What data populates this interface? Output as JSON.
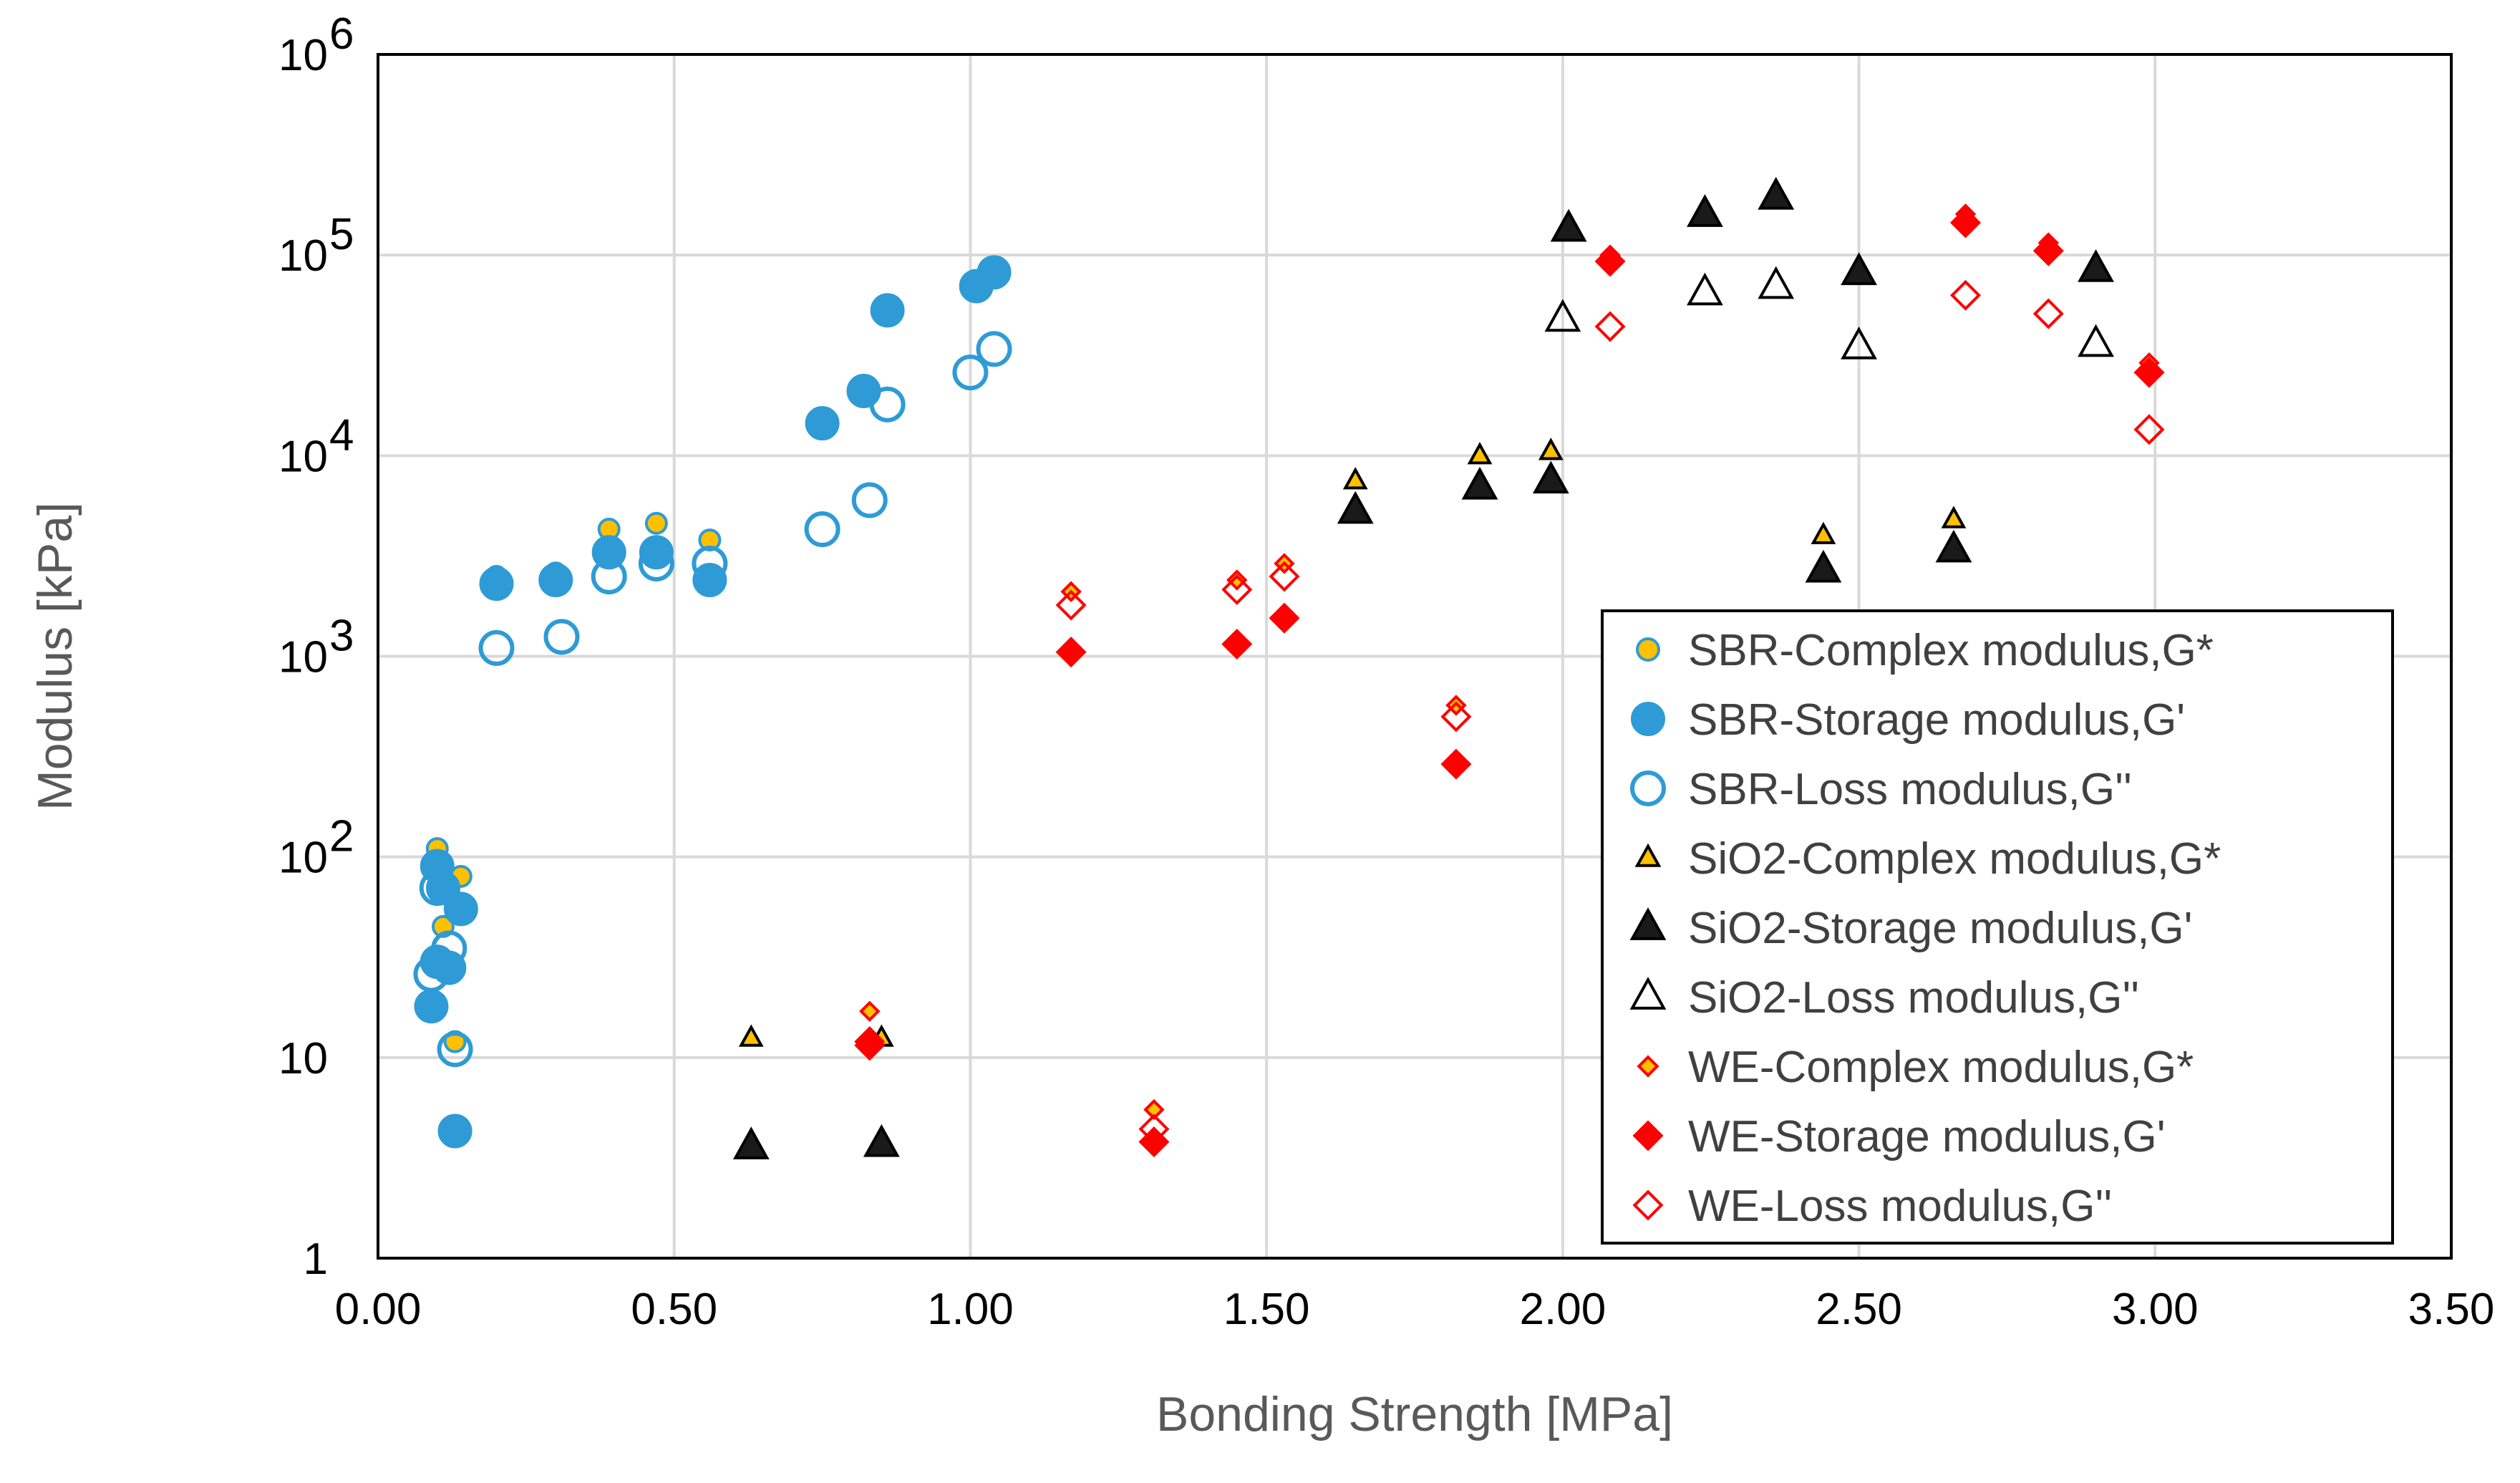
{
  "chart_data": {
    "type": "scatter",
    "title": "",
    "xlabel": "Bonding Strength [MPa]",
    "ylabel": "Modulus [kPa]",
    "xlim": [
      0,
      3.5
    ],
    "ylim": [
      1,
      1000000
    ],
    "yscale": "log",
    "grid": true,
    "legend_position": "bottom-right",
    "x_ticks": [
      0,
      0.5,
      1.0,
      1.5,
      2.0,
      2.5,
      3.0,
      3.5
    ],
    "x_tick_labels": [
      "0.00",
      "0.50",
      "1.00",
      "1.50",
      "2.00",
      "2.50",
      "3.00",
      "3.50"
    ],
    "y_ticks": [
      {
        "value": 1,
        "base": "1",
        "exp": ""
      },
      {
        "value": 10,
        "base": "10",
        "exp": ""
      },
      {
        "value": 100,
        "base": "10",
        "exp": "2"
      },
      {
        "value": 1000,
        "base": "10",
        "exp": "3"
      },
      {
        "value": 10000,
        "base": "10",
        "exp": "4"
      },
      {
        "value": 100000,
        "base": "10",
        "exp": "5"
      },
      {
        "value": 1000000,
        "base": "10",
        "exp": "6"
      }
    ],
    "series": [
      {
        "name": "SBR-Complex modulus,G*",
        "marker": "circle",
        "fill": "#FFC000",
        "stroke": "#2E9BD6",
        "size": "small",
        "points": [
          [
            0.1,
            110
          ],
          [
            0.11,
            45
          ],
          [
            0.13,
            12
          ],
          [
            0.14,
            80
          ],
          [
            0.2,
            2500
          ],
          [
            0.3,
            2600
          ],
          [
            0.39,
            4300
          ],
          [
            0.47,
            4600
          ],
          [
            0.56,
            3800
          ]
        ]
      },
      {
        "name": "SBR-Storage modulus,G'",
        "marker": "circle",
        "fill": "#2E9BD6",
        "stroke": "#2E9BD6",
        "size": "large",
        "points": [
          [
            0.09,
            18
          ],
          [
            0.1,
            30
          ],
          [
            0.1,
            90
          ],
          [
            0.11,
            70
          ],
          [
            0.12,
            28
          ],
          [
            0.13,
            4.3
          ],
          [
            0.14,
            55
          ],
          [
            0.2,
            2300
          ],
          [
            0.3,
            2400
          ],
          [
            0.39,
            3300
          ],
          [
            0.47,
            3300
          ],
          [
            0.56,
            2400
          ],
          [
            0.75,
            14500
          ],
          [
            0.82,
            21000
          ],
          [
            0.86,
            53000
          ],
          [
            1.01,
            70000
          ],
          [
            1.04,
            82000
          ]
        ]
      },
      {
        "name": "SBR-Loss modulus,G''",
        "marker": "circle",
        "fill": "none",
        "stroke": "#2E9BD6",
        "size": "large",
        "points": [
          [
            0.09,
            26
          ],
          [
            0.1,
            70
          ],
          [
            0.12,
            35
          ],
          [
            0.13,
            11
          ],
          [
            0.2,
            1100
          ],
          [
            0.31,
            1250
          ],
          [
            0.39,
            2500
          ],
          [
            0.47,
            2900
          ],
          [
            0.56,
            2900
          ],
          [
            0.75,
            4300
          ],
          [
            0.83,
            6000
          ],
          [
            0.86,
            18000
          ],
          [
            1.0,
            26000
          ],
          [
            1.04,
            34000
          ]
        ]
      },
      {
        "name": "SiO2-Complex modulus,G*",
        "marker": "triangle",
        "fill": "#FFC000",
        "stroke": "#000000",
        "size": "small",
        "points": [
          [
            0.63,
            12.5
          ],
          [
            0.85,
            12.5
          ],
          [
            1.65,
            7500
          ],
          [
            1.86,
            10000
          ],
          [
            1.98,
            10500
          ],
          [
            2.44,
            4000
          ],
          [
            2.66,
            4800
          ]
        ]
      },
      {
        "name": "SiO2-Storage modulus,G'",
        "marker": "triangle",
        "fill": "#1A1A1A",
        "stroke": "#000000",
        "size": "large",
        "points": [
          [
            0.63,
            3.6
          ],
          [
            0.85,
            3.7
          ],
          [
            1.65,
            5300
          ],
          [
            1.86,
            7000
          ],
          [
            1.98,
            7500
          ],
          [
            2.01,
            135000
          ],
          [
            2.24,
            160000
          ],
          [
            2.36,
            195000
          ],
          [
            2.44,
            2700
          ],
          [
            2.5,
            82000
          ],
          [
            2.66,
            3400
          ],
          [
            2.9,
            85000
          ]
        ]
      },
      {
        "name": "SiO2-Loss modulus,G''",
        "marker": "triangle",
        "fill": "none",
        "stroke": "#000000",
        "size": "large",
        "points": [
          [
            2.0,
            48000
          ],
          [
            2.24,
            65000
          ],
          [
            2.36,
            70000
          ],
          [
            2.5,
            35000
          ],
          [
            2.9,
            36000
          ]
        ]
      },
      {
        "name": "WE-Complex modulus,G*",
        "marker": "diamond",
        "fill": "#FFC000",
        "stroke": "#FF0000",
        "size": "small",
        "points": [
          [
            0.83,
            17
          ],
          [
            1.17,
            2100
          ],
          [
            1.31,
            5.5
          ],
          [
            1.45,
            2400
          ],
          [
            1.53,
            2900
          ],
          [
            1.82,
            570
          ],
          [
            2.08,
            100000
          ],
          [
            2.68,
            160000
          ],
          [
            2.82,
            115000
          ],
          [
            2.99,
            29000
          ]
        ]
      },
      {
        "name": "WE-Storage modulus,G'",
        "marker": "diamond",
        "fill": "#FF0000",
        "stroke": "#FF0000",
        "size": "large",
        "points": [
          [
            0.83,
            12
          ],
          [
            1.17,
            1050
          ],
          [
            1.31,
            3.8
          ],
          [
            1.45,
            1150
          ],
          [
            1.53,
            1550
          ],
          [
            1.82,
            290
          ],
          [
            2.08,
            93000
          ],
          [
            2.68,
            145000
          ],
          [
            2.82,
            105000
          ],
          [
            2.99,
            26000
          ]
        ]
      },
      {
        "name": "WE-Loss modulus,G''",
        "marker": "diamond",
        "fill": "none",
        "stroke": "#FF0000",
        "size": "large",
        "points": [
          [
            0.83,
            11.5
          ],
          [
            1.17,
            1800
          ],
          [
            1.31,
            4.4
          ],
          [
            1.45,
            2150
          ],
          [
            1.53,
            2500
          ],
          [
            1.82,
            500
          ],
          [
            2.08,
            44000
          ],
          [
            2.68,
            63000
          ],
          [
            2.82,
            51000
          ],
          [
            2.99,
            13500
          ]
        ]
      }
    ]
  }
}
